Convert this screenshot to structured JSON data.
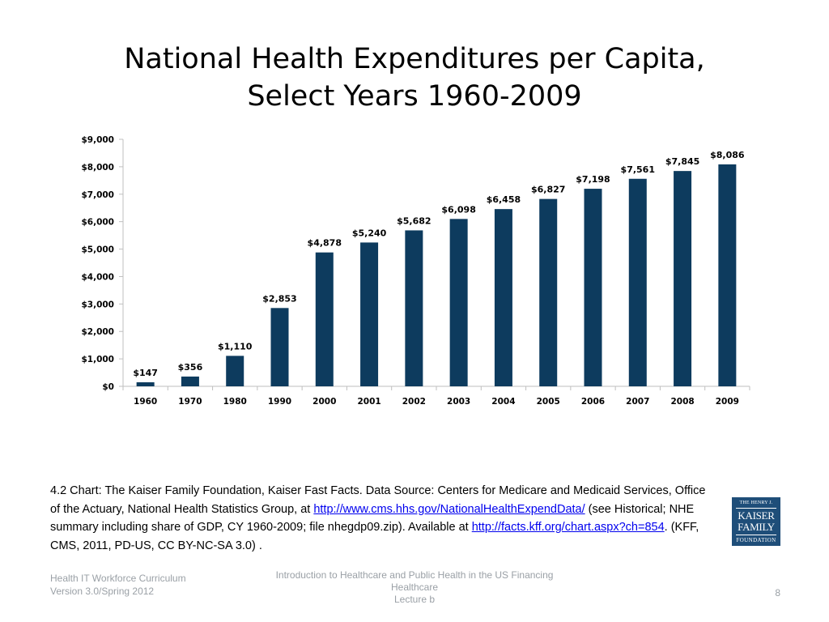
{
  "slide": {
    "title_line1": "National Health Expenditures per Capita,",
    "title_line2": "Select Years 1960-2009"
  },
  "chart_data": {
    "type": "bar",
    "categories": [
      "1960",
      "1970",
      "1980",
      "1990",
      "2000",
      "2001",
      "2002",
      "2003",
      "2004",
      "2005",
      "2006",
      "2007",
      "2008",
      "2009"
    ],
    "values": [
      147,
      356,
      1110,
      2853,
      4878,
      5240,
      5682,
      6098,
      6458,
      6827,
      7198,
      7561,
      7845,
      8086
    ],
    "data_labels": [
      "$147",
      "$356",
      "$1,110",
      "$2,853",
      "$4,878",
      "$5,240",
      "$5,682",
      "$6,098",
      "$6,458",
      "$6,827",
      "$7,198",
      "$7,561",
      "$7,845",
      "$8,086"
    ],
    "y_ticks": [
      0,
      1000,
      2000,
      3000,
      4000,
      5000,
      6000,
      7000,
      8000,
      9000
    ],
    "y_tick_labels": [
      "$0",
      "$1,000",
      "$2,000",
      "$3,000",
      "$4,000",
      "$5,000",
      "$6,000",
      "$7,000",
      "$8,000",
      "$9,000"
    ],
    "ylim": [
      0,
      9000
    ],
    "grid": false,
    "legend": "none",
    "bar_color": "#0d3b5e",
    "axis_color": "#bfbfbf"
  },
  "source": {
    "prefix": "4.2 Chart: ",
    "text1": "The Kaiser Family Foundation, Kaiser Fast Facts. Data  Source: Centers for Medicare and Medicaid Services, Office of the Actuary, National Health Statistics Group, at ",
    "link1": "http://www.cms.hhs.gov/NationalHealthExpendData/",
    "text2": " (see Historical; NHE summary including share of GDP, CY 1960-2009; file nhegdp09.zip). Available at ",
    "link2": "http://facts.kff.org/chart.aspx?ch=854",
    "text3": ". (KFF, CMS,  2011, PD-US, CC BY-NC-SA 3.0) ."
  },
  "logo": {
    "line1": "THE HENRY J.",
    "line2": "KAISER",
    "line3": "FAMILY",
    "line4": "FOUNDATION",
    "color": "#1f4e79"
  },
  "footer": {
    "left_line1": "Health IT Workforce Curriculum",
    "left_line2": "Version 3.0/Spring 2012",
    "center_line1": "Introduction to Healthcare and Public Health in the US Financing",
    "center_line2": "Healthcare",
    "center_line3": "Lecture b",
    "page_number": "8"
  }
}
